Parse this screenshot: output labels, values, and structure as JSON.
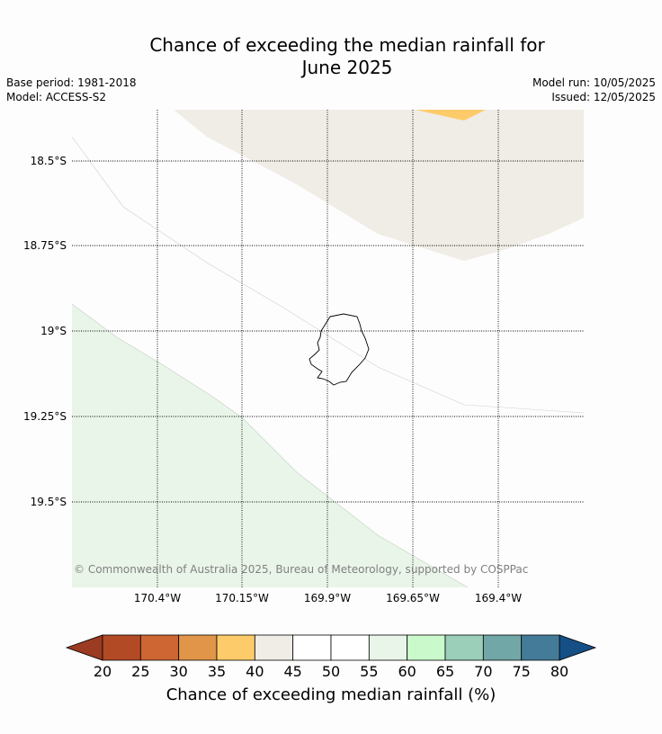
{
  "title_line1": "Chance of exceeding the median rainfall for",
  "title_line2": "June 2025",
  "base_period": "Base period: 1981-2018",
  "model": "Model: ACCESS-S2",
  "model_run": "Model run: 10/05/2025",
  "issued": "Issued: 12/05/2025",
  "map": {
    "lat_labels": [
      "18.5°S",
      "18.75°S",
      "19°S",
      "19.25°S",
      "19.5°S"
    ],
    "lon_labels": [
      "170.4°W",
      "170.15°W",
      "169.9°W",
      "169.65°W",
      "169.4°W"
    ],
    "copyright": "© Commonwealth of Australia 2025, Bureau of Meteorology, supported by COSPPac"
  },
  "colorbar": {
    "ticks": [
      "20",
      "25",
      "30",
      "35",
      "40",
      "45",
      "50",
      "55",
      "60",
      "65",
      "70",
      "75",
      "80"
    ],
    "label": "Chance of exceeding median rainfall (%)",
    "colors": [
      "#b24a25",
      "#cd6633",
      "#e09548",
      "#fdcb69",
      "#f0ece6",
      "#ffffff",
      "#ffffff",
      "#eaf5e9",
      "#caf9cb",
      "#9ccfb9",
      "#72a7a7",
      "#437b99"
    ],
    "under_color": "#9a3b22",
    "over_color": "#154f86"
  }
}
